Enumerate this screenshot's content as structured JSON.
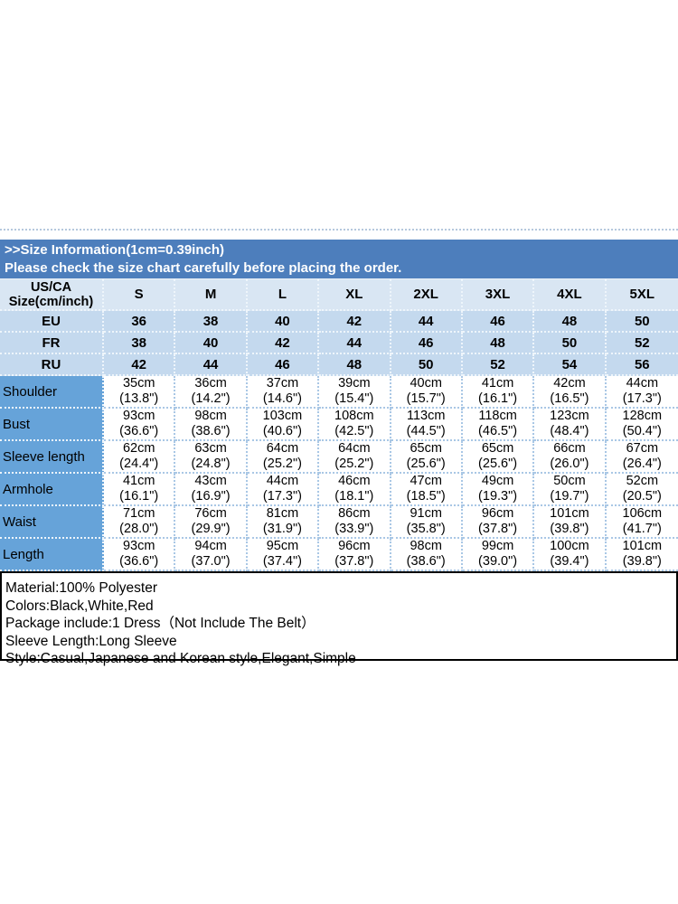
{
  "banner": {
    "title": ">>Size Information(1cm=0.39inch)",
    "subtitle": "Please check the size chart carefully before placing the order."
  },
  "size_table": {
    "corner_line1": "US/CA",
    "corner_line2": "Size(cm/inch)",
    "columns": [
      "S",
      "M",
      "L",
      "XL",
      "2XL",
      "3XL",
      "4XL",
      "5XL"
    ],
    "size_rows": [
      {
        "label": "EU",
        "values": [
          "36",
          "38",
          "40",
          "42",
          "44",
          "46",
          "48",
          "50"
        ]
      },
      {
        "label": "FR",
        "values": [
          "38",
          "40",
          "42",
          "44",
          "46",
          "48",
          "50",
          "52"
        ]
      },
      {
        "label": "RU",
        "values": [
          "42",
          "44",
          "46",
          "48",
          "50",
          "52",
          "54",
          "56"
        ]
      }
    ],
    "measurement_rows": [
      {
        "label": "Shoulder",
        "cm": [
          "35cm",
          "36cm",
          "37cm",
          "39cm",
          "40cm",
          "41cm",
          "42cm",
          "44cm"
        ],
        "inch": [
          "(13.8\")",
          "(14.2\")",
          "(14.6\")",
          "(15.4\")",
          "(15.7\")",
          "(16.1\")",
          "(16.5\")",
          "(17.3\")"
        ]
      },
      {
        "label": "Bust",
        "cm": [
          "93cm",
          "98cm",
          "103cm",
          "108cm",
          "113cm",
          "118cm",
          "123cm",
          "128cm"
        ],
        "inch": [
          "(36.6\")",
          "(38.6\")",
          "(40.6\")",
          "(42.5\")",
          "(44.5\")",
          "(46.5\")",
          "(48.4\")",
          "(50.4\")"
        ]
      },
      {
        "label": "Sleeve length",
        "cm": [
          "62cm",
          "63cm",
          "64cm",
          "64cm",
          "65cm",
          "65cm",
          "66cm",
          "67cm"
        ],
        "inch": [
          "(24.4\")",
          "(24.8\")",
          "(25.2\")",
          "(25.2\")",
          "(25.6\")",
          "(25.6\")",
          "(26.0\")",
          "(26.4\")"
        ]
      },
      {
        "label": "Armhole",
        "cm": [
          "41cm",
          "43cm",
          "44cm",
          "46cm",
          "47cm",
          "49cm",
          "50cm",
          "52cm"
        ],
        "inch": [
          "(16.1\")",
          "(16.9\")",
          "(17.3\")",
          "(18.1\")",
          "(18.5\")",
          "(19.3\")",
          "(19.7\")",
          "(20.5\")"
        ]
      },
      {
        "label": "Waist",
        "cm": [
          "71cm",
          "76cm",
          "81cm",
          "86cm",
          "91cm",
          "96cm",
          "101cm",
          "106cm"
        ],
        "inch": [
          "(28.0\")",
          "(29.9\")",
          "(31.9\")",
          "(33.9\")",
          "(35.8\")",
          "(37.8\")",
          "(39.8\")",
          "(41.7\")"
        ]
      },
      {
        "label": "Length",
        "cm": [
          "93cm",
          "94cm",
          "95cm",
          "96cm",
          "98cm",
          "99cm",
          "100cm",
          "101cm"
        ],
        "inch": [
          "(36.6\")",
          "(37.0\")",
          "(37.4\")",
          "(37.8\")",
          "(38.6\")",
          "(39.0\")",
          "(39.4\")",
          "(39.8\")"
        ]
      }
    ]
  },
  "info_box": {
    "lines": [
      "Material:100% Polyester",
      "Colors:Black,White,Red",
      "Package include:1 Dress（Not Include The Belt）",
      "Sleeve Length:Long Sleeve",
      "Style:Casual,Japanese and Korean style,Elegant,Simple"
    ]
  },
  "colors": {
    "banner_bg": "#4d7ebc",
    "header_row_bg": "#d9e6f3",
    "size_row_bg": "#c4d9ee",
    "label_cell_bg": "#66a3d9",
    "grid_blue": "#a9c7e5",
    "grid_white": "#eef5fb"
  }
}
